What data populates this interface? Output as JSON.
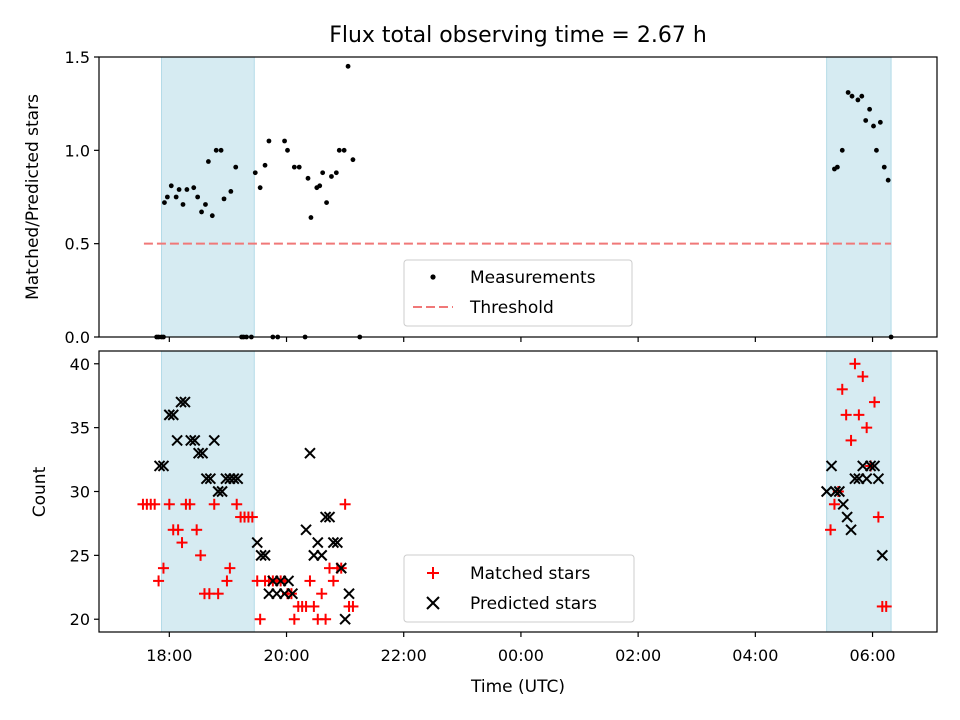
{
  "chart_data": [
    {
      "type": "scatter",
      "title": "Flux total observing time = 2.67 h",
      "ylabel": "Matched/Predicted stars",
      "ylim": [
        0,
        1.5
      ],
      "yticks": [
        "0.0",
        "0.5",
        "1.0",
        "1.5"
      ],
      "xlim_hours": [
        16.8,
        31.1
      ],
      "shaded_intervals": [
        [
          "17:52",
          "19:27"
        ],
        [
          "05:13",
          "06:19"
        ]
      ],
      "threshold": 0.5,
      "threshold_color": "#f07878",
      "legend_position": "bottom-center",
      "legend": [
        "Measurements",
        "Threshold"
      ],
      "series": [
        {
          "name": "Measurements",
          "color": "#000000",
          "marker": "dot",
          "points": [
            [
              "17:47",
              0
            ],
            [
              "17:49",
              0
            ],
            [
              "17:52",
              0
            ],
            [
              "17:54",
              0
            ],
            [
              "17:55",
              0.72
            ],
            [
              "17:58",
              0.75
            ],
            [
              "18:02",
              0.81
            ],
            [
              "18:07",
              0.75
            ],
            [
              "18:10",
              0.79
            ],
            [
              "18:14",
              0.71
            ],
            [
              "18:18",
              0.79
            ],
            [
              "18:25",
              0.8
            ],
            [
              "18:29",
              0.75
            ],
            [
              "18:33",
              0.67
            ],
            [
              "18:37",
              0.71
            ],
            [
              "18:40",
              0.94
            ],
            [
              "18:44",
              0.65
            ],
            [
              "18:48",
              1.0
            ],
            [
              "18:53",
              1.0
            ],
            [
              "18:56",
              0.74
            ],
            [
              "19:03",
              0.78
            ],
            [
              "19:08",
              0.91
            ],
            [
              "19:14",
              0
            ],
            [
              "19:16",
              0
            ],
            [
              "19:19",
              0
            ],
            [
              "19:24",
              0
            ],
            [
              "19:28",
              0.88
            ],
            [
              "19:33",
              0.8
            ],
            [
              "19:38",
              0.92
            ],
            [
              "19:42",
              1.05
            ],
            [
              "19:46",
              0
            ],
            [
              "19:51",
              0
            ],
            [
              "19:58",
              1.05
            ],
            [
              "20:01",
              1.0
            ],
            [
              "20:08",
              0.91
            ],
            [
              "20:13",
              0.91
            ],
            [
              "20:19",
              0
            ],
            [
              "20:22",
              0.85
            ],
            [
              "20:25",
              0.64
            ],
            [
              "20:31",
              0.8
            ],
            [
              "20:34",
              0.81
            ],
            [
              "20:37",
              0.88
            ],
            [
              "20:41",
              0.72
            ],
            [
              "20:46",
              0.86
            ],
            [
              "20:51",
              0.88
            ],
            [
              "20:54",
              1.0
            ],
            [
              "20:59",
              1.0
            ],
            [
              "21:03",
              1.45
            ],
            [
              "21:08",
              0.95
            ],
            [
              "21:15",
              0
            ],
            [
              "05:21",
              0.9
            ],
            [
              "05:24",
              0.91
            ],
            [
              "05:29",
              1.0
            ],
            [
              "05:35",
              1.31
            ],
            [
              "05:39",
              1.29
            ],
            [
              "05:45",
              1.27
            ],
            [
              "05:49",
              1.29
            ],
            [
              "05:53",
              1.16
            ],
            [
              "05:57",
              1.22
            ],
            [
              "06:01",
              1.13
            ],
            [
              "06:04",
              1.0
            ],
            [
              "06:08",
              1.15
            ],
            [
              "06:12",
              0.91
            ],
            [
              "06:16",
              0.84
            ],
            [
              "06:19",
              0
            ]
          ]
        },
        {
          "name": "Threshold",
          "color": "#f07878",
          "line": "dashed",
          "x_range": [
            "17:34",
            "06:19"
          ],
          "value": 0.5
        }
      ]
    },
    {
      "type": "scatter",
      "xlabel": "Time (UTC)",
      "ylabel": "Count",
      "ylim": [
        19,
        41
      ],
      "yticks": [
        "20",
        "25",
        "30",
        "35",
        "40"
      ],
      "xticks": [
        "18:00",
        "20:00",
        "22:00",
        "00:00",
        "02:00",
        "04:00",
        "06:00"
      ],
      "xlim_hours": [
        16.8,
        31.1
      ],
      "shaded_intervals": [
        [
          "17:52",
          "19:27"
        ],
        [
          "05:13",
          "06:19"
        ]
      ],
      "legend_position": "bottom-center",
      "legend": [
        "Matched stars",
        "Predicted stars"
      ],
      "series": [
        {
          "name": "Matched stars",
          "color": "#ff0000",
          "marker": "plus",
          "points": [
            [
              "17:33",
              29
            ],
            [
              "17:37",
              29
            ],
            [
              "17:41",
              29
            ],
            [
              "17:45",
              29
            ],
            [
              "17:49",
              23
            ],
            [
              "17:54",
              24
            ],
            [
              "18:00",
              29
            ],
            [
              "18:04",
              27
            ],
            [
              "18:09",
              27
            ],
            [
              "18:13",
              26
            ],
            [
              "18:17",
              29
            ],
            [
              "18:21",
              29
            ],
            [
              "18:28",
              27
            ],
            [
              "18:32",
              25
            ],
            [
              "18:36",
              22
            ],
            [
              "18:41",
              22
            ],
            [
              "18:46",
              29
            ],
            [
              "18:50",
              22
            ],
            [
              "18:59",
              23
            ],
            [
              "19:02",
              24
            ],
            [
              "19:09",
              29
            ],
            [
              "19:13",
              28
            ],
            [
              "19:17",
              28
            ],
            [
              "19:21",
              28
            ],
            [
              "19:25",
              28
            ],
            [
              "19:30",
              23
            ],
            [
              "19:33",
              20
            ],
            [
              "19:38",
              23
            ],
            [
              "19:42",
              23
            ],
            [
              "19:46",
              23
            ],
            [
              "19:50",
              23
            ],
            [
              "19:54",
              23
            ],
            [
              "19:58",
              23
            ],
            [
              "20:01",
              22
            ],
            [
              "20:05",
              22
            ],
            [
              "20:08",
              20
            ],
            [
              "20:12",
              21
            ],
            [
              "20:16",
              21
            ],
            [
              "20:20",
              21
            ],
            [
              "20:24",
              23
            ],
            [
              "20:28",
              21
            ],
            [
              "20:32",
              20
            ],
            [
              "20:36",
              22
            ],
            [
              "20:40",
              20
            ],
            [
              "20:44",
              24
            ],
            [
              "20:48",
              23
            ],
            [
              "20:52",
              24
            ],
            [
              "20:56",
              24
            ],
            [
              "21:00",
              29
            ],
            [
              "21:04",
              21
            ],
            [
              "21:08",
              21
            ],
            [
              "05:17",
              27
            ],
            [
              "05:21",
              29
            ],
            [
              "05:25",
              30
            ],
            [
              "05:29",
              38
            ],
            [
              "05:33",
              36
            ],
            [
              "05:38",
              34
            ],
            [
              "05:42",
              40
            ],
            [
              "05:46",
              36
            ],
            [
              "05:50",
              39
            ],
            [
              "05:54",
              35
            ],
            [
              "05:58",
              32
            ],
            [
              "06:02",
              37
            ],
            [
              "06:06",
              28
            ],
            [
              "06:10",
              21
            ],
            [
              "06:14",
              21
            ]
          ]
        },
        {
          "name": "Predicted stars",
          "color": "#000000",
          "marker": "x",
          "points": [
            [
              "17:50",
              32
            ],
            [
              "17:54",
              32
            ],
            [
              "18:00",
              36
            ],
            [
              "18:04",
              36
            ],
            [
              "18:08",
              34
            ],
            [
              "18:12",
              37
            ],
            [
              "18:16",
              37
            ],
            [
              "18:22",
              34
            ],
            [
              "18:26",
              34
            ],
            [
              "18:30",
              33
            ],
            [
              "18:34",
              33
            ],
            [
              "18:38",
              31
            ],
            [
              "18:42",
              31
            ],
            [
              "18:46",
              34
            ],
            [
              "18:50",
              30
            ],
            [
              "18:54",
              30
            ],
            [
              "18:58",
              31
            ],
            [
              "19:02",
              31
            ],
            [
              "19:06",
              31
            ],
            [
              "19:10",
              31
            ],
            [
              "19:30",
              26
            ],
            [
              "19:34",
              25
            ],
            [
              "19:38",
              25
            ],
            [
              "19:42",
              22
            ],
            [
              "19:46",
              23
            ],
            [
              "19:50",
              22
            ],
            [
              "19:54",
              23
            ],
            [
              "19:58",
              22
            ],
            [
              "20:02",
              23
            ],
            [
              "20:06",
              22
            ],
            [
              "20:20",
              27
            ],
            [
              "20:24",
              33
            ],
            [
              "20:28",
              25
            ],
            [
              "20:32",
              26
            ],
            [
              "20:36",
              25
            ],
            [
              "20:40",
              28
            ],
            [
              "20:44",
              28
            ],
            [
              "20:48",
              26
            ],
            [
              "20:52",
              26
            ],
            [
              "20:56",
              24
            ],
            [
              "21:00",
              20
            ],
            [
              "21:04",
              22
            ],
            [
              "05:13",
              30
            ],
            [
              "05:18",
              32
            ],
            [
              "05:22",
              30
            ],
            [
              "05:26",
              30
            ],
            [
              "05:30",
              29
            ],
            [
              "05:34",
              28
            ],
            [
              "05:38",
              27
            ],
            [
              "05:42",
              31
            ],
            [
              "05:46",
              31
            ],
            [
              "05:50",
              32
            ],
            [
              "05:54",
              31
            ],
            [
              "05:58",
              32
            ],
            [
              "06:02",
              32
            ],
            [
              "06:06",
              31
            ],
            [
              "06:10",
              25
            ]
          ]
        }
      ]
    }
  ],
  "colors": {
    "shade": "#add8e6",
    "axes": "#000000"
  }
}
